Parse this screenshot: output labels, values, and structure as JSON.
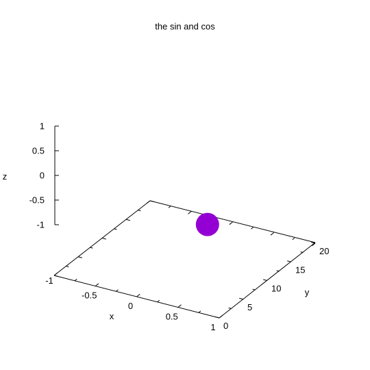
{
  "chart_data": {
    "type": "scatter",
    "title": "the sin and cos",
    "xlabel": "x",
    "ylabel": "y",
    "zlabel": "z",
    "xlim": [
      -1,
      1
    ],
    "ylim": [
      0,
      20
    ],
    "zlim": [
      -1,
      1
    ],
    "x_ticks": [
      {
        "value": -1,
        "label": "-1"
      },
      {
        "value": -0.5,
        "label": "-0.5"
      },
      {
        "value": 0,
        "label": "0"
      },
      {
        "value": 0.5,
        "label": "0.5"
      },
      {
        "value": 1,
        "label": "1"
      }
    ],
    "y_ticks": [
      {
        "value": 0,
        "label": "0"
      },
      {
        "value": 5,
        "label": "5"
      },
      {
        "value": 10,
        "label": "10"
      },
      {
        "value": 15,
        "label": "15"
      },
      {
        "value": 20,
        "label": "20"
      }
    ],
    "z_ticks": [
      {
        "value": -1,
        "label": "-1"
      },
      {
        "value": -0.5,
        "label": "-0.5"
      },
      {
        "value": 0,
        "label": "0"
      },
      {
        "value": 0.5,
        "label": "0.5"
      },
      {
        "value": 1,
        "label": "1"
      }
    ],
    "minor_ticks_x": [
      -0.75,
      -0.25,
      0.25,
      0.75
    ],
    "minor_ticks_y": [
      2.5,
      7.5,
      12.5,
      17.5
    ],
    "series": [
      {
        "color": "#9400d3",
        "points": [
          {
            "x": -0.2,
            "y": 18.2,
            "z": -1
          }
        ]
      }
    ],
    "grid": false
  }
}
